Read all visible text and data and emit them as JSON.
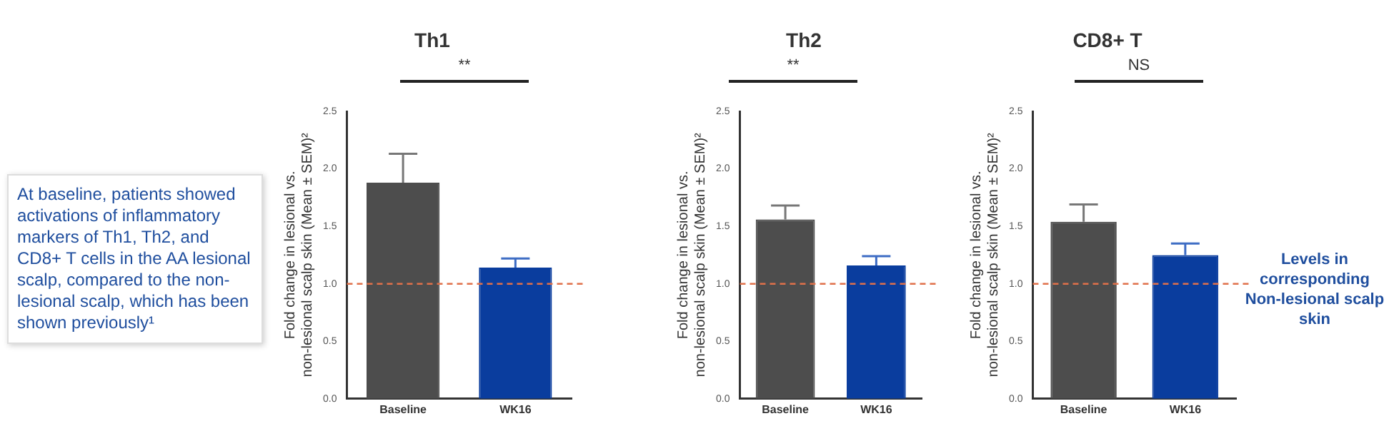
{
  "chart_data": [
    {
      "type": "bar",
      "title": "Th1",
      "ylabel": "Fold change in lesional vs. non-lesional scalp skin (Mean ± SEM)²",
      "categories": [
        "Baseline",
        "WK16"
      ],
      "values": [
        1.88,
        1.14
      ],
      "errors": [
        0.25,
        0.08
      ],
      "colors": [
        "#4d4d4d",
        "#0a3d9e"
      ],
      "ylim": [
        0,
        2.5
      ],
      "yticks": [
        {
          "value": 0,
          "label": "0.0"
        },
        {
          "value": 0.5,
          "label": "0.5"
        },
        {
          "value": 1,
          "label": "1.0"
        },
        {
          "value": 1.5,
          "label": "1.5"
        },
        {
          "value": 2,
          "label": "2.0"
        },
        {
          "value": 2.5,
          "label": "2.5"
        }
      ],
      "grid": false,
      "ref_lines": [
        {
          "axis": "y",
          "value": 1,
          "color": "#e0704a",
          "line_style": "dashed"
        }
      ],
      "annotations": [
        "**",
        "At baseline, patients showed activations of inflammatory markers of Th1, Th2, and CD8+ T cells in the AA lesional scalp, compared to the non-lesional scalp, which has been shown previously¹"
      ]
    },
    {
      "type": "bar",
      "title": "Th2",
      "ylabel": "Fold change in lesional vs. non-lesional scalp skin (Mean ± SEM)²",
      "categories": [
        "Baseline",
        "WK16"
      ],
      "values": [
        1.56,
        1.16
      ],
      "errors": [
        0.12,
        0.08
      ],
      "colors": [
        "#4d4d4d",
        "#0a3d9e"
      ],
      "ylim": [
        0,
        2.5
      ],
      "yticks": [
        {
          "value": 0,
          "label": "0.0"
        },
        {
          "value": 0.5,
          "label": "0.5"
        },
        {
          "value": 1,
          "label": "1.0"
        },
        {
          "value": 1.5,
          "label": "1.5"
        },
        {
          "value": 2,
          "label": "2.0"
        },
        {
          "value": 2.5,
          "label": "2.5"
        }
      ],
      "grid": false,
      "ref_lines": [
        {
          "axis": "y",
          "value": 1,
          "color": "#e0704a",
          "line_style": "dashed"
        }
      ],
      "annotations": [
        "**"
      ]
    },
    {
      "type": "bar",
      "title": "CD8+ T",
      "ylabel": "Fold change in lesional vs. non-lesional scalp skin (Mean ± SEM)²",
      "categories": [
        "Baseline",
        "WK16"
      ],
      "values": [
        1.54,
        1.25
      ],
      "errors": [
        0.15,
        0.1
      ],
      "colors": [
        "#4d4d4d",
        "#0a3d9e"
      ],
      "ylim": [
        0,
        2.5
      ],
      "yticks": [
        {
          "value": 0,
          "label": "0.0"
        },
        {
          "value": 0.5,
          "label": "0.5"
        },
        {
          "value": 1,
          "label": "1.0"
        },
        {
          "value": 1.5,
          "label": "1.5"
        },
        {
          "value": 2,
          "label": "2.0"
        },
        {
          "value": 2.5,
          "label": "2.5"
        }
      ],
      "grid": false,
      "ref_lines": [
        {
          "axis": "y",
          "value": 1,
          "color": "#e0704a",
          "line_style": "dashed",
          "label": "Levels in corresponding Non-lesional scalp skin"
        }
      ],
      "annotations": [
        "NS"
      ]
    }
  ]
}
